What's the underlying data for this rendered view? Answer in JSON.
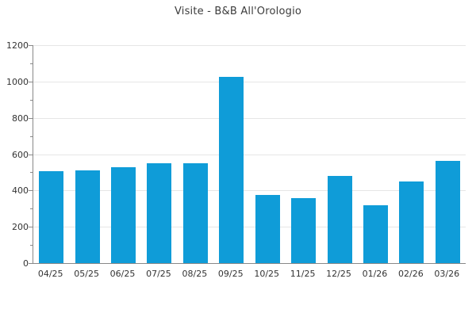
{
  "header": {
    "title": "Visite - B&B All'Orologio"
  },
  "chart_data": {
    "type": "bar",
    "title": "Visite - B&B All'Orologio",
    "categories": [
      "04/25",
      "05/25",
      "06/25",
      "07/25",
      "08/25",
      "09/25",
      "10/25",
      "11/25",
      "12/25",
      "01/26",
      "02/26",
      "03/26"
    ],
    "values": [
      505,
      510,
      530,
      550,
      550,
      1025,
      375,
      360,
      480,
      320,
      450,
      565
    ],
    "xlabel": "",
    "ylabel": "",
    "ylim": [
      0,
      1200
    ],
    "yticks": [
      0,
      200,
      400,
      600,
      800,
      1000,
      1200
    ],
    "minor_tick_step": 100,
    "grid": "horizontal",
    "legend_position": "none",
    "bar_color": "#0f9cd8"
  },
  "colors": {
    "bar": "#0f9cd8",
    "gridline": "#e6e6e6",
    "axis": "#888888",
    "text": "#333333",
    "title_text": "#3c3c3c",
    "background": "#ffffff"
  }
}
